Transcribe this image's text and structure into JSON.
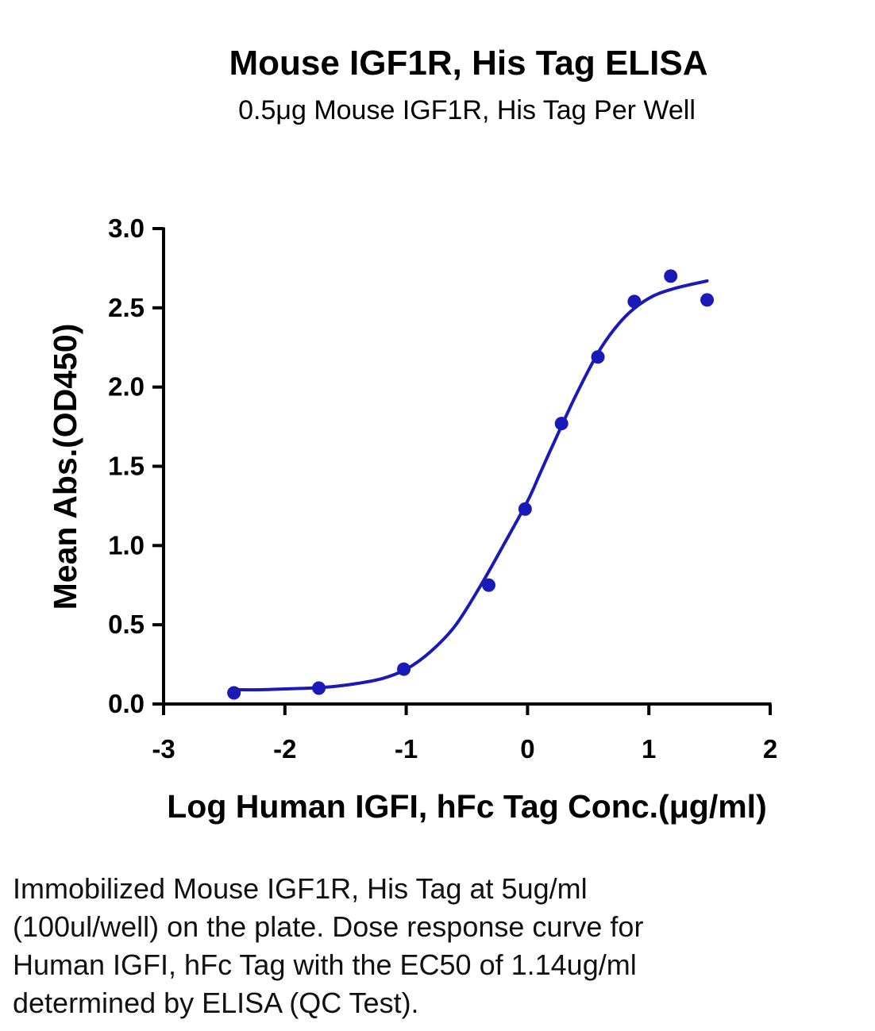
{
  "chart_data": {
    "type": "scatter",
    "title": "Mouse IGF1R, His Tag ELISA",
    "subtitle": "0.5μg Mouse IGF1R, His Tag Per Well",
    "xlabel": "Log Human IGFI, hFc Tag Conc.(μg/ml)",
    "ylabel": "Mean Abs.(OD450)",
    "xlim": [
      -3,
      2
    ],
    "ylim": [
      0,
      3.0
    ],
    "x_ticks": [
      -3,
      -2,
      -1,
      0,
      1,
      2
    ],
    "x_tick_labels": [
      "-3",
      "-2",
      "-1",
      "0",
      "1",
      "2"
    ],
    "y_ticks": [
      0,
      0.5,
      1.0,
      1.5,
      2.0,
      2.5,
      3.0
    ],
    "y_tick_labels": [
      "0.0",
      "0.5",
      "1.0",
      "1.5",
      "2.0",
      "2.5",
      "3.0"
    ],
    "grid": false,
    "color": "#1a1ab8",
    "series": [
      {
        "x": [
          -2.42,
          -1.72,
          -1.02,
          -0.32,
          -0.02,
          0.28,
          0.58,
          0.88,
          1.18,
          1.48
        ],
        "y": [
          0.07,
          0.1,
          0.22,
          0.75,
          1.23,
          1.77,
          2.19,
          2.54,
          2.7,
          2.55
        ]
      }
    ],
    "fit_curve": {
      "x": [
        -2.42,
        -2.2,
        -2.0,
        -1.8,
        -1.6,
        -1.4,
        -1.2,
        -1.0,
        -0.8,
        -0.6,
        -0.4,
        -0.2,
        0.0,
        0.1,
        0.2,
        0.4,
        0.6,
        0.8,
        1.0,
        1.2,
        1.48
      ],
      "y": [
        0.09,
        0.09,
        0.095,
        0.1,
        0.11,
        0.13,
        0.16,
        0.22,
        0.33,
        0.49,
        0.73,
        1.0,
        1.28,
        1.45,
        1.62,
        1.95,
        2.24,
        2.44,
        2.56,
        2.62,
        2.67
      ]
    }
  },
  "caption": "Immobilized Mouse IGF1R, His Tag at 5ug/ml (100ul/well) on the plate. Dose response curve for Human IGFI, hFc Tag with the EC50 of 1.14ug/ml determined by ELISA (QC Test)."
}
